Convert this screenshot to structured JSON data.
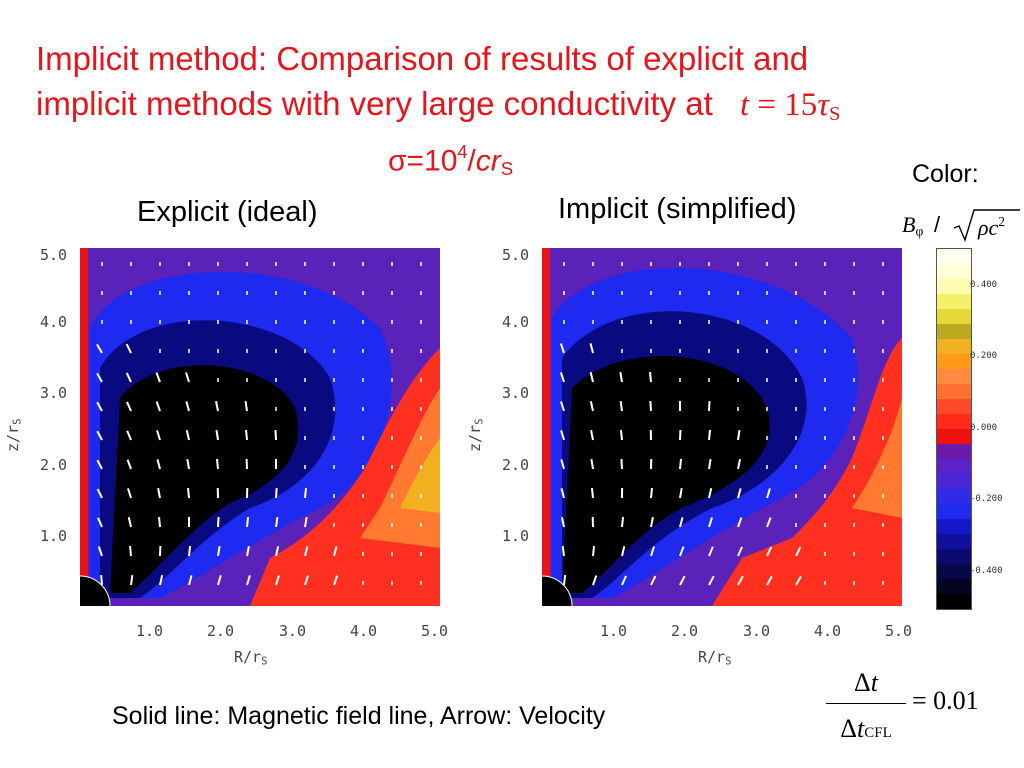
{
  "title": {
    "line1": "Implicit method: Comparison of results of explicit and",
    "line2": "implicit methods with very large conductivity at",
    "time_t": "t",
    "time_eq": " = 15",
    "time_tau": "τ",
    "time_sub": "S"
  },
  "sigma": {
    "prefix": "σ=10",
    "exp": "4",
    "slash": "/",
    "cr": "cr",
    "sub": "S"
  },
  "panels": [
    {
      "title": "Explicit (ideal)"
    },
    {
      "title": "Implicit (simplified)"
    }
  ],
  "axes": {
    "y_ticks": [
      "5.0",
      "4.0",
      "3.0",
      "2.0",
      "1.0"
    ],
    "x_ticks": [
      "1.0",
      "2.0",
      "3.0",
      "4.0",
      "5.0"
    ],
    "y_label": "z/r",
    "y_label_sub": "S",
    "x_label": "R/r",
    "x_label_sub": "S",
    "range": [
      0,
      5
    ]
  },
  "colorbar": {
    "label": "Color:",
    "formula_b": "B",
    "formula_phi": "φ",
    "formula_slash": " / ",
    "formula_rho": "ρc",
    "formula_exp": "2",
    "ticks": [
      "0.400",
      "0.200",
      "0.000",
      "-0.200",
      "-0.400"
    ],
    "colors": [
      "#fffff0",
      "#ffffd8",
      "#fdfdb0",
      "#f4f06a",
      "#e7d83a",
      "#b9a820",
      "#f0b020",
      "#ff9a18",
      "#ff8a40",
      "#ff7030",
      "#ff4a2a",
      "#ff2a1a",
      "#f01010",
      "#6a1aa8",
      "#5a22c8",
      "#4a26d8",
      "#2f2ae8",
      "#1e2af0",
      "#1518c8",
      "#0f0fa0",
      "#0a0a70",
      "#080846",
      "#050522",
      "#000000"
    ]
  },
  "footer": "Solid line: Magnetic field line, Arrow: Velocity",
  "ratio": {
    "num_delta": "Δ",
    "num_t": "t",
    "den_delta": "Δ",
    "den_t": "t",
    "den_sub": "CFL",
    "eq": "= 0.01"
  },
  "colors": {
    "title": "#e8141c",
    "background": "#5a22b8"
  }
}
